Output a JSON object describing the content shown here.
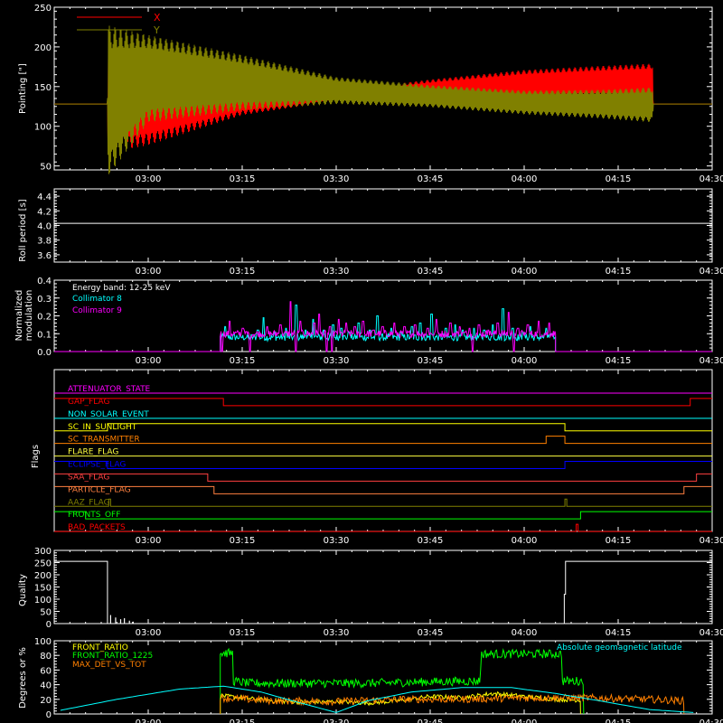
{
  "colors": {
    "background": "#000000",
    "axes": "#ffffff",
    "pointing_x": "#ff0000",
    "pointing_y": "#808000",
    "collimator_8": "#00ffff",
    "collimator_9": "#ff00ff",
    "front_ratio": "#ffff00",
    "front_ratio_1225": "#00ff00",
    "max_det_vs_tot": "#ff8000",
    "geomag_latitude": "#00ffff"
  },
  "chart_data": [
    {
      "id": "pointing",
      "type": "line",
      "ylabel": "Pointing [\"]",
      "ylim": [
        45,
        250
      ],
      "yticks": [
        50,
        100,
        150,
        200,
        250
      ],
      "xlim_minutes": [
        165,
        270
      ],
      "xticks": [
        "03:00",
        "03:15",
        "03:30",
        "03:45",
        "04:00",
        "04:15",
        "04:30"
      ],
      "legend_position": "top-left",
      "series": [
        {
          "name": "X",
          "color": "#ff0000",
          "x_minutes": [
            165,
            173.5,
            173.6,
            180,
            195,
            210,
            225,
            240,
            252,
            260.5,
            260.6,
            270
          ],
          "center": [
            128,
            128,
            128,
            126,
            134,
            138,
            145,
            153,
            156,
            157,
            128,
            128
          ],
          "amplitude": [
            0,
            0,
            62,
            50,
            20,
            6,
            14,
            18,
            20,
            22,
            0,
            0
          ]
        },
        {
          "name": "Y",
          "color": "#808000",
          "x_minutes": [
            165,
            173.5,
            173.6,
            180,
            195,
            210,
            225,
            240,
            252,
            260.5,
            260.6,
            270
          ],
          "center": [
            128,
            128,
            132,
            160,
            155,
            145,
            138,
            130,
            128,
            127,
            128,
            128
          ],
          "amplitude": [
            0,
            0,
            95,
            55,
            35,
            17,
            14,
            15,
            18,
            22,
            0,
            0
          ]
        }
      ]
    },
    {
      "id": "roll-period",
      "type": "line",
      "ylabel": "Roll period [s]",
      "ylim": [
        3.5,
        4.5
      ],
      "yticks": [
        3.6,
        3.8,
        4.0,
        4.2,
        4.4
      ],
      "xlim_minutes": [
        165,
        270
      ],
      "xticks": [
        "03:00",
        "03:15",
        "03:30",
        "03:45",
        "04:00",
        "04:15",
        "04:30"
      ],
      "series": [
        {
          "x_minutes": [
            165,
            270
          ],
          "values": [
            4.03,
            4.03
          ]
        }
      ]
    },
    {
      "id": "modulation",
      "type": "line",
      "ylabel": "Normalized modulation",
      "ylim": [
        0,
        0.4
      ],
      "yticks": [
        0.0,
        0.1,
        0.2,
        0.3,
        0.4
      ],
      "xlim_minutes": [
        165,
        270
      ],
      "xticks": [
        "03:00",
        "03:15",
        "03:30",
        "03:45",
        "04:00",
        "04:15",
        "04:30"
      ],
      "annotation": "Energy band: 12-25 keV",
      "active_range_minutes": [
        191.5,
        245
      ],
      "series": [
        {
          "name": "Collimator 8",
          "color": "#00ffff",
          "baseline": 0.08,
          "spikes": [
            [
              192.3,
              0.14
            ],
            [
              197.5,
              0.12
            ],
            [
              198.4,
              0.19
            ],
            [
              200.2,
              0.11
            ],
            [
              202.0,
              0.13
            ],
            [
              203.6,
              0.26
            ],
            [
              205.1,
              0.12
            ],
            [
              206.3,
              0.18
            ],
            [
              208.0,
              0.12
            ],
            [
              209.5,
              0.15
            ],
            [
              210.8,
              0.13
            ],
            [
              212.0,
              0.11
            ],
            [
              213.6,
              0.16
            ],
            [
              215.4,
              0.12
            ],
            [
              216.6,
              0.2
            ],
            [
              218.8,
              0.13
            ],
            [
              220.3,
              0.11
            ],
            [
              222.1,
              0.14
            ],
            [
              223.4,
              0.16
            ],
            [
              225.2,
              0.21
            ],
            [
              227.5,
              0.13
            ],
            [
              229.0,
              0.15
            ],
            [
              230.2,
              0.12
            ],
            [
              232.0,
              0.13
            ],
            [
              233.6,
              0.12
            ],
            [
              235.0,
              0.15
            ],
            [
              236.6,
              0.24
            ],
            [
              238.2,
              0.13
            ],
            [
              239.8,
              0.11
            ],
            [
              241.0,
              0.14
            ],
            [
              243.5,
              0.13
            ],
            [
              244.5,
              0.1
            ]
          ]
        },
        {
          "name": "Collimator 9",
          "color": "#ff00ff",
          "baseline": 0.1,
          "spikes": [
            [
              193.0,
              0.17
            ],
            [
              195.1,
              0.13
            ],
            [
              199.0,
              0.14
            ],
            [
              201.1,
              0.15
            ],
            [
              202.7,
              0.28
            ],
            [
              204.3,
              0.17
            ],
            [
              206.5,
              0.16
            ],
            [
              207.3,
              0.21
            ],
            [
              209.0,
              0.14
            ],
            [
              210.4,
              0.18
            ],
            [
              211.6,
              0.16
            ],
            [
              213.0,
              0.14
            ],
            [
              214.3,
              0.17
            ],
            [
              216.0,
              0.12
            ],
            [
              217.4,
              0.14
            ],
            [
              219.3,
              0.16
            ],
            [
              220.9,
              0.14
            ],
            [
              222.6,
              0.15
            ],
            [
              224.6,
              0.13
            ],
            [
              226.0,
              0.18
            ],
            [
              228.2,
              0.16
            ],
            [
              229.7,
              0.14
            ],
            [
              231.3,
              0.13
            ],
            [
              232.8,
              0.15
            ],
            [
              234.3,
              0.12
            ],
            [
              235.8,
              0.16
            ],
            [
              237.5,
              0.22
            ],
            [
              239.0,
              0.13
            ],
            [
              240.6,
              0.15
            ],
            [
              242.3,
              0.17
            ],
            [
              244.0,
              0.16
            ]
          ],
          "dips": [
            191.8,
            196.3,
            203.6,
            208.5,
            209.3,
            231.8,
            238.4
          ]
        }
      ]
    },
    {
      "id": "flags",
      "type": "line",
      "ylabel": "Flags",
      "xlim_minutes": [
        165,
        270
      ],
      "xticks": [
        "03:00",
        "03:15",
        "03:30",
        "03:45",
        "04:00",
        "04:15",
        "04:30"
      ],
      "series": [
        {
          "name": "ATTENUATOR_STATE",
          "color": "#ff00ff",
          "steps": [
            [
              165,
              0
            ],
            [
              270,
              0
            ]
          ]
        },
        {
          "name": "GAP_FLAG",
          "color": "#ff0000",
          "steps": [
            [
              165,
              1
            ],
            [
              192,
              0
            ],
            [
              266.5,
              1
            ],
            [
              270,
              1
            ]
          ]
        },
        {
          "name": "NON_SOLAR_EVENT",
          "color": "#00ffff",
          "steps": [
            [
              165,
              0
            ],
            [
              270,
              0
            ]
          ]
        },
        {
          "name": "SC_IN_SUNLIGHT",
          "color": "#ffff00",
          "steps": [
            [
              165,
              0
            ],
            [
              173.5,
              1
            ],
            [
              246.5,
              0
            ],
            [
              270,
              0
            ]
          ]
        },
        {
          "name": "SC_TRANSMITTER",
          "color": "#ff8000",
          "steps": [
            [
              165,
              0
            ],
            [
              243.5,
              1
            ],
            [
              246.5,
              0
            ],
            [
              270,
              0
            ]
          ]
        },
        {
          "name": "FLARE_FLAG",
          "color": "#ffff40",
          "steps": [
            [
              165,
              0
            ],
            [
              270,
              0
            ]
          ]
        },
        {
          "name": "ECLIPSE_FLAG",
          "color": "#0000ff",
          "steps": [
            [
              165,
              1
            ],
            [
              173.5,
              0
            ],
            [
              246.5,
              1
            ],
            [
              270,
              1
            ]
          ]
        },
        {
          "name": "SAA_FLAG",
          "color": "#ff4040",
          "steps": [
            [
              165,
              1
            ],
            [
              189.5,
              0
            ],
            [
              267.5,
              1
            ],
            [
              270,
              1
            ]
          ]
        },
        {
          "name": "PARTICLE_FLAG",
          "color": "#ff8040",
          "steps": [
            [
              165,
              1
            ],
            [
              190.5,
              0
            ],
            [
              265.5,
              1
            ],
            [
              270,
              1
            ]
          ]
        },
        {
          "name": "AAZ_FLAG",
          "color": "#808000",
          "steps": [
            [
              165,
              0
            ],
            [
              173.7,
              1
            ],
            [
              174.0,
              0
            ],
            [
              246.5,
              1
            ],
            [
              246.8,
              0
            ],
            [
              270,
              0
            ]
          ]
        },
        {
          "name": "FRONTS_OFF",
          "color": "#00ff00",
          "steps": [
            [
              165,
              1
            ],
            [
              170,
              0
            ],
            [
              249,
              1
            ],
            [
              270,
              1
            ]
          ]
        },
        {
          "name": "BAD_PACKETS",
          "color": "#ff0000",
          "steps": [
            [
              165,
              0
            ],
            [
              248.3,
              1
            ],
            [
              248.6,
              0
            ],
            [
              270,
              0
            ]
          ]
        }
      ]
    },
    {
      "id": "quality",
      "type": "line",
      "ylabel": "Quality",
      "ylim": [
        0,
        300
      ],
      "yticks": [
        0,
        50,
        100,
        150,
        200,
        250,
        300
      ],
      "xlim_minutes": [
        165,
        270
      ],
      "xticks": [
        "03:00",
        "03:15",
        "03:30",
        "03:45",
        "04:00",
        "04:15",
        "04:30"
      ],
      "series": [
        {
          "x_minutes": [
            165,
            173.5,
            173.5,
            246.4,
            246.4,
            246.6,
            246.6,
            270
          ],
          "values": [
            255,
            255,
            0,
            0,
            120,
            120,
            255,
            255
          ],
          "bursts": [
            [
              174.0,
              35
            ],
            [
              174.8,
              25
            ],
            [
              175.6,
              18
            ],
            [
              176.2,
              22
            ],
            [
              177.0,
              12
            ],
            [
              177.6,
              8
            ]
          ]
        }
      ]
    },
    {
      "id": "ratios",
      "type": "line",
      "ylabel": "Degrees or %",
      "ylim": [
        0,
        100
      ],
      "yticks": [
        0,
        20,
        40,
        60,
        80,
        100
      ],
      "xlim_minutes": [
        165,
        270
      ],
      "xticks": [
        "03:00",
        "03:15",
        "03:30",
        "03:45",
        "04:00",
        "04:15",
        "04:30"
      ],
      "annotation": "Absolute geomagnetic latitude",
      "series": [
        {
          "name": "FRONT_RATIO",
          "color": "#ffff00",
          "x_minutes": [
            191.5,
            195,
            200,
            205,
            210,
            215,
            220,
            225,
            230,
            235,
            240,
            245,
            249
          ],
          "values": [
            25,
            22,
            18,
            16,
            17,
            15,
            18,
            24,
            22,
            28,
            24,
            20,
            19
          ],
          "noise": 3
        },
        {
          "name": "FRONT_RATIO_1225",
          "color": "#00ff00",
          "x_minutes": [
            191.5,
            193.5,
            193.6,
            196,
            205,
            215,
            225,
            233,
            233.1,
            245,
            246,
            246.1,
            249.5
          ],
          "values": [
            83,
            83,
            45,
            42,
            42,
            42,
            44,
            45,
            82,
            82,
            82,
            45,
            45
          ],
          "noise": 6
        },
        {
          "name": "MAX_DET_VS_TOT",
          "color": "#ff8000",
          "x_minutes": [
            191.5,
            200,
            210,
            220,
            230,
            240,
            250,
            260,
            265.5
          ],
          "values": [
            22,
            18,
            17,
            20,
            20,
            22,
            22,
            20,
            18
          ],
          "noise": 5
        },
        {
          "name": "Absolute geomagnetic latitude",
          "color": "#00ffff",
          "x_minutes": [
            166,
            175,
            185,
            192,
            198,
            203,
            210,
            215,
            222,
            230,
            238,
            245,
            252,
            260,
            267
          ],
          "values": [
            5,
            20,
            34,
            38,
            30,
            18,
            2,
            18,
            30,
            36,
            36,
            28,
            18,
            6,
            2
          ]
        }
      ]
    }
  ]
}
